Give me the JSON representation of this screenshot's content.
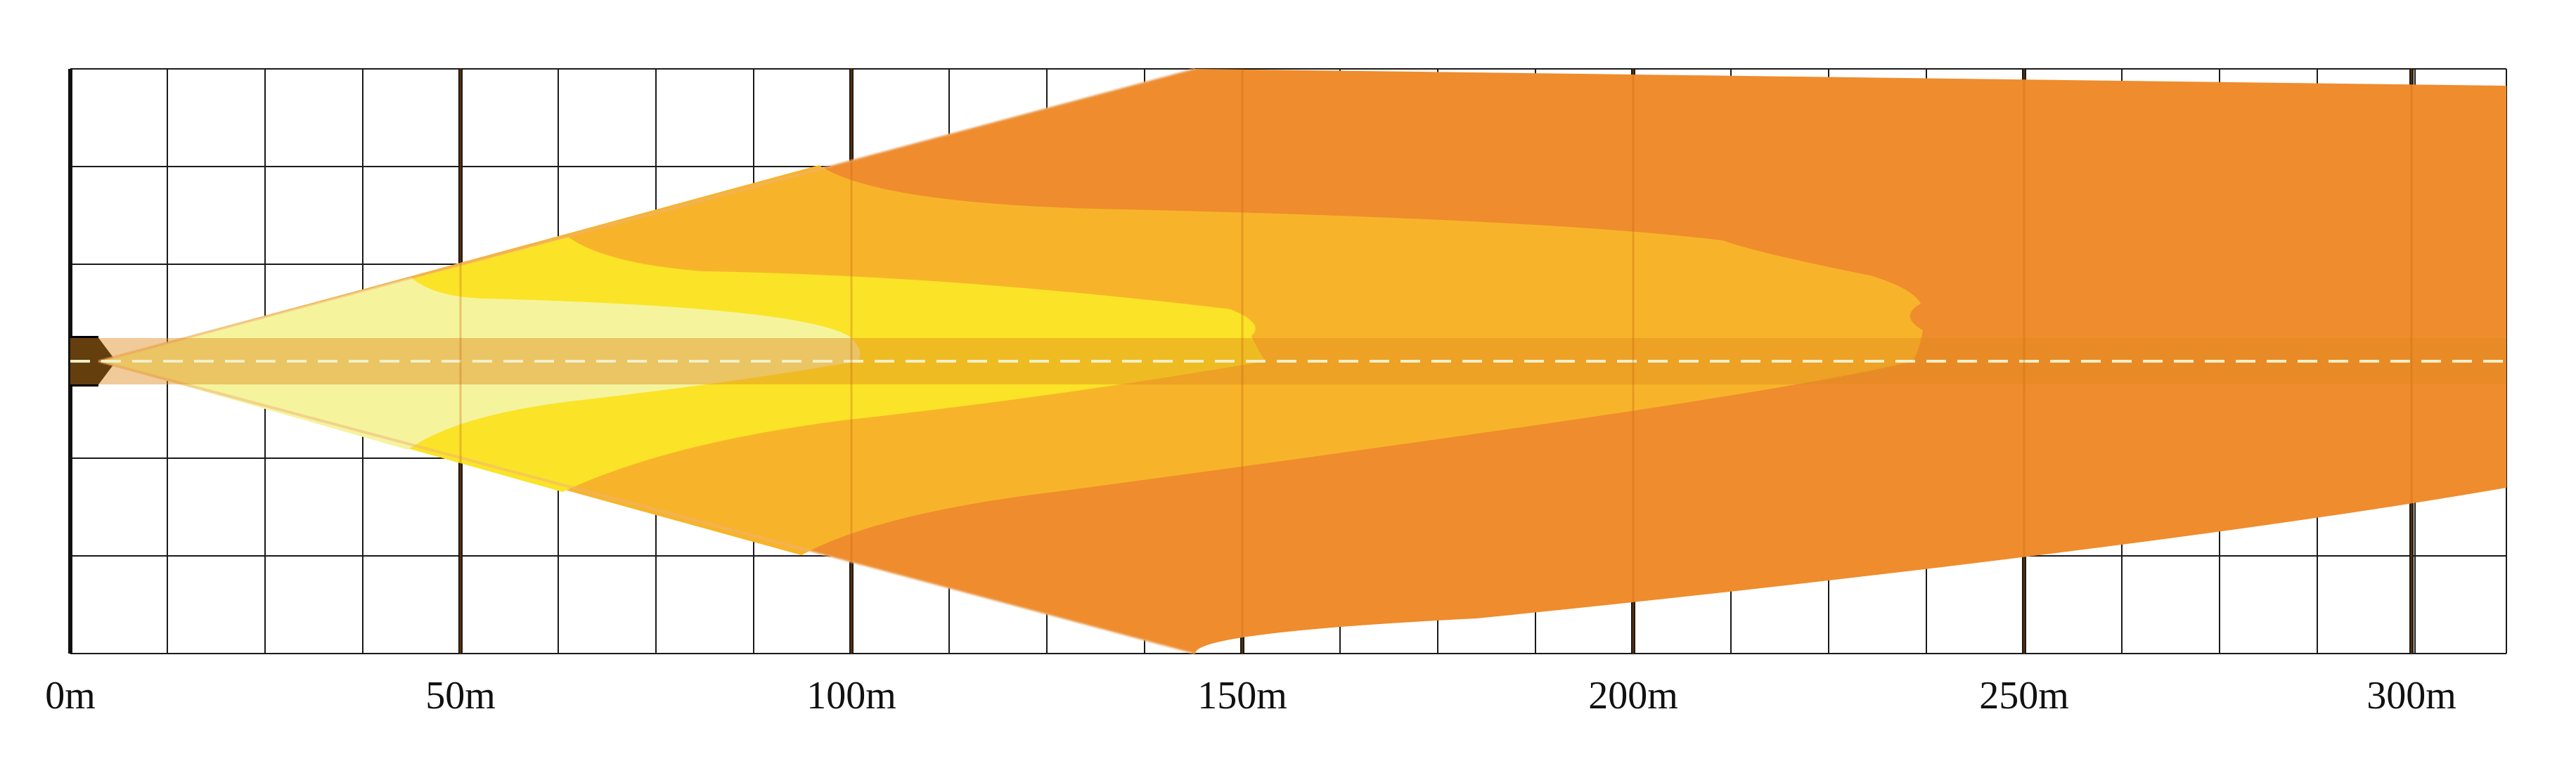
{
  "figure": {
    "colors": {
      "background": "#ffffff",
      "grid_line": "#1a1a1a",
      "zone_outer": "#ef8c2d",
      "zone_mid": "#f7b42a",
      "zone_inner": "#fbe327",
      "zone_near": "#f5f49d",
      "center_band": "#e08a1e",
      "center_dash": "#f0f0c8"
    },
    "x_axis": {
      "tick_labels": [
        "0m",
        "50m",
        "100m",
        "150m",
        "200m",
        "250m",
        "300m"
      ]
    }
  }
}
